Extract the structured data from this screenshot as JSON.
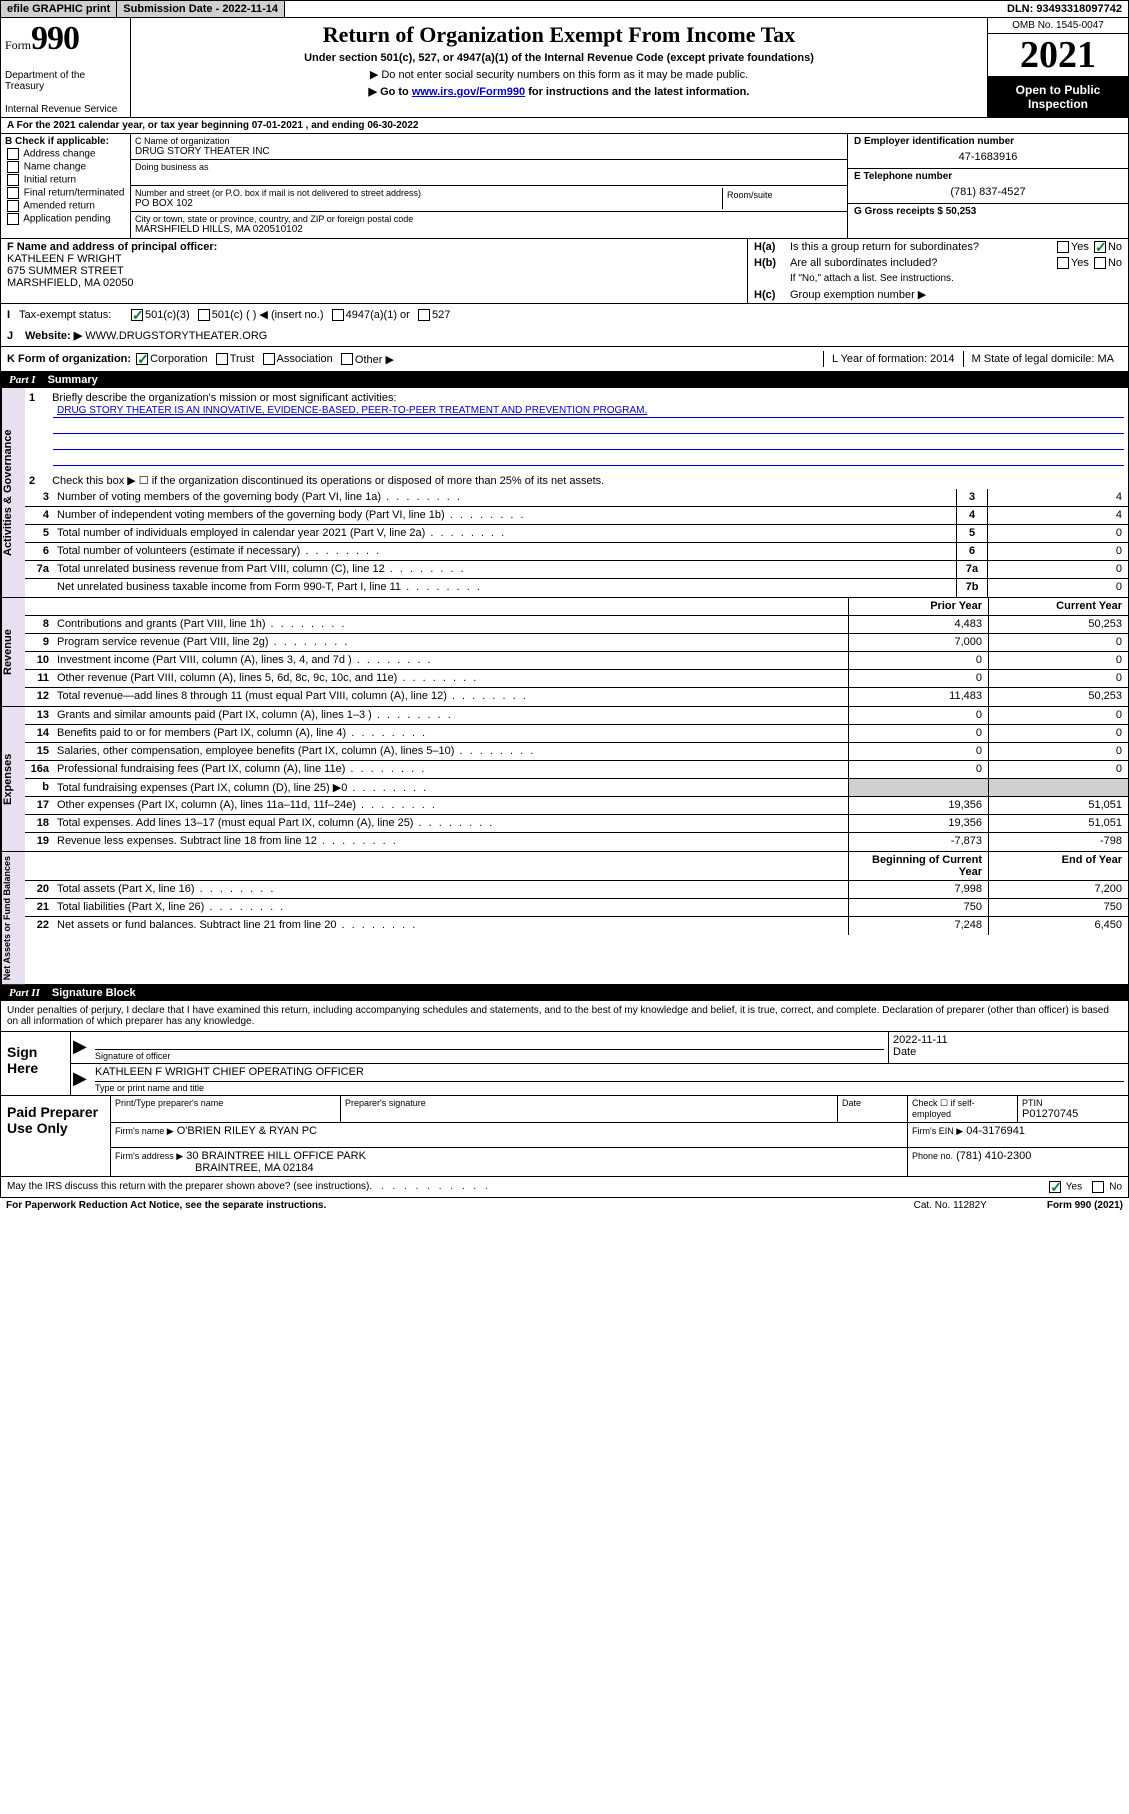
{
  "topbar": {
    "efile": "efile GRAPHIC print",
    "submission_label": "Submission Date - 2022-11-14",
    "dln": "DLN: 93493318097742"
  },
  "header": {
    "form_prefix": "Form",
    "form_num": "990",
    "dept": "Department of the Treasury",
    "irs": "Internal Revenue Service",
    "title": "Return of Organization Exempt From Income Tax",
    "sub1": "Under section 501(c), 527, or 4947(a)(1) of the Internal Revenue Code (except private foundations)",
    "sub2": "Do not enter social security numbers on this form as it may be made public.",
    "sub3_pre": "Go to ",
    "sub3_link": "www.irs.gov/Form990",
    "sub3_post": " for instructions and the latest information.",
    "omb": "OMB No. 1545-0047",
    "year": "2021",
    "open": "Open to Public Inspection"
  },
  "row_a": "A For the 2021 calendar year, or tax year beginning 07-01-2021   , and ending 06-30-2022",
  "col_b": {
    "hdr": "B Check if applicable:",
    "items": [
      "Address change",
      "Name change",
      "Initial return",
      "Final return/terminated",
      "Amended return",
      "Application pending"
    ]
  },
  "col_c": {
    "name_lbl": "C Name of organization",
    "name": "DRUG STORY THEATER INC",
    "dba_lbl": "Doing business as",
    "dba": "",
    "addr_lbl": "Number and street (or P.O. box if mail is not delivered to street address)",
    "addr": "PO BOX 102",
    "room_lbl": "Room/suite",
    "city_lbl": "City or town, state or province, country, and ZIP or foreign postal code",
    "city": "MARSHFIELD HILLS, MA  020510102"
  },
  "col_d": {
    "ein_lbl": "D Employer identification number",
    "ein": "47-1683916",
    "tel_lbl": "E Telephone number",
    "tel": "(781) 837-4527",
    "gross_lbl": "G Gross receipts $ 50,253"
  },
  "row_f": {
    "lbl": "F Name and address of principal officer:",
    "name": "KATHLEEN F WRIGHT",
    "addr1": "675 SUMMER STREET",
    "addr2": "MARSHFIELD, MA  02050"
  },
  "row_h": {
    "a_lbl": "Is this a group return for subordinates?",
    "b_lbl": "Are all subordinates included?",
    "b_note": "If \"No,\" attach a list. See instructions.",
    "c_lbl": "Group exemption number ▶"
  },
  "row_i": {
    "lbl": "Tax-exempt status:",
    "opts": [
      "501(c)(3)",
      "501(c) (  ) ◀ (insert no.)",
      "4947(a)(1) or",
      "527"
    ]
  },
  "row_j": {
    "lbl": "Website: ▶",
    "val": "WWW.DRUGSTORYTHEATER.ORG"
  },
  "row_k": {
    "lbl": "K Form of organization:",
    "opts": [
      "Corporation",
      "Trust",
      "Association",
      "Other ▶"
    ],
    "l_lbl": "L Year of formation: 2014",
    "m_lbl": "M State of legal domicile: MA"
  },
  "part1": {
    "hdr": "Summary",
    "l1_lbl": "Briefly describe the organization's mission or most significant activities:",
    "l1_val": "DRUG STORY THEATER IS AN INNOVATIVE, EVIDENCE-BASED, PEER-TO-PEER TREATMENT AND PREVENTION PROGRAM.",
    "l2": "Check this box ▶ ☐  if the organization discontinued its operations or disposed of more than 25% of its net assets.",
    "lines_ag": [
      {
        "n": "3",
        "t": "Number of voting members of the governing body (Part VI, line 1a)",
        "k": "3",
        "v": "4"
      },
      {
        "n": "4",
        "t": "Number of independent voting members of the governing body (Part VI, line 1b)",
        "k": "4",
        "v": "4"
      },
      {
        "n": "5",
        "t": "Total number of individuals employed in calendar year 2021 (Part V, line 2a)",
        "k": "5",
        "v": "0"
      },
      {
        "n": "6",
        "t": "Total number of volunteers (estimate if necessary)",
        "k": "6",
        "v": "0"
      },
      {
        "n": "7a",
        "t": "Total unrelated business revenue from Part VIII, column (C), line 12",
        "k": "7a",
        "v": "0"
      },
      {
        "n": "",
        "t": "Net unrelated business taxable income from Form 990-T, Part I, line 11",
        "k": "7b",
        "v": "0"
      }
    ],
    "col_prior": "Prior Year",
    "col_curr": "Current Year",
    "rev": [
      {
        "n": "8",
        "t": "Contributions and grants (Part VIII, line 1h)",
        "p": "4,483",
        "c": "50,253"
      },
      {
        "n": "9",
        "t": "Program service revenue (Part VIII, line 2g)",
        "p": "7,000",
        "c": "0"
      },
      {
        "n": "10",
        "t": "Investment income (Part VIII, column (A), lines 3, 4, and 7d )",
        "p": "0",
        "c": "0"
      },
      {
        "n": "11",
        "t": "Other revenue (Part VIII, column (A), lines 5, 6d, 8c, 9c, 10c, and 11e)",
        "p": "0",
        "c": "0"
      },
      {
        "n": "12",
        "t": "Total revenue—add lines 8 through 11 (must equal Part VIII, column (A), line 12)",
        "p": "11,483",
        "c": "50,253"
      }
    ],
    "exp": [
      {
        "n": "13",
        "t": "Grants and similar amounts paid (Part IX, column (A), lines 1–3 )",
        "p": "0",
        "c": "0"
      },
      {
        "n": "14",
        "t": "Benefits paid to or for members (Part IX, column (A), line 4)",
        "p": "0",
        "c": "0"
      },
      {
        "n": "15",
        "t": "Salaries, other compensation, employee benefits (Part IX, column (A), lines 5–10)",
        "p": "0",
        "c": "0"
      },
      {
        "n": "16a",
        "t": "Professional fundraising fees (Part IX, column (A), line 11e)",
        "p": "0",
        "c": "0"
      },
      {
        "n": "b",
        "t": "Total fundraising expenses (Part IX, column (D), line 25) ▶0",
        "p": "",
        "c": "",
        "shade": true
      },
      {
        "n": "17",
        "t": "Other expenses (Part IX, column (A), lines 11a–11d, 11f–24e)",
        "p": "19,356",
        "c": "51,051"
      },
      {
        "n": "18",
        "t": "Total expenses. Add lines 13–17 (must equal Part IX, column (A), line 25)",
        "p": "19,356",
        "c": "51,051"
      },
      {
        "n": "19",
        "t": "Revenue less expenses. Subtract line 18 from line 12",
        "p": "-7,873",
        "c": "-798"
      }
    ],
    "col_beg": "Beginning of Current Year",
    "col_end": "End of Year",
    "net": [
      {
        "n": "20",
        "t": "Total assets (Part X, line 16)",
        "p": "7,998",
        "c": "7,200"
      },
      {
        "n": "21",
        "t": "Total liabilities (Part X, line 26)",
        "p": "750",
        "c": "750"
      },
      {
        "n": "22",
        "t": "Net assets or fund balances. Subtract line 21 from line 20",
        "p": "7,248",
        "c": "6,450"
      }
    ]
  },
  "part2": {
    "hdr": "Signature Block",
    "perjury": "Under penalties of perjury, I declare that I have examined this return, including accompanying schedules and statements, and to the best of my knowledge and belief, it is true, correct, and complete. Declaration of preparer (other than officer) is based on all information of which preparer has any knowledge.",
    "sign_here": "Sign Here",
    "sig_officer_lbl": "Signature of officer",
    "sig_date": "2022-11-11",
    "sig_date_lbl": "Date",
    "officer_name": "KATHLEEN F WRIGHT CHIEF OPERATING OFFICER",
    "officer_name_lbl": "Type or print name and title",
    "paid": "Paid Preparer Use Only",
    "prep_name_lbl": "Print/Type preparer's name",
    "prep_sig_lbl": "Preparer's signature",
    "prep_date_lbl": "Date",
    "prep_check_lbl": "Check ☐ if self-employed",
    "ptin_lbl": "PTIN",
    "ptin": "P01270745",
    "firm_name_lbl": "Firm's name   ▶",
    "firm_name": "O'BRIEN RILEY & RYAN PC",
    "firm_ein_lbl": "Firm's EIN ▶",
    "firm_ein": "04-3176941",
    "firm_addr_lbl": "Firm's address ▶",
    "firm_addr1": "30 BRAINTREE HILL OFFICE PARK",
    "firm_addr2": "BRAINTREE, MA  02184",
    "firm_phone_lbl": "Phone no.",
    "firm_phone": "(781) 410-2300",
    "discuss": "May the IRS discuss this return with the preparer shown above? (see instructions)"
  },
  "footer": {
    "left": "For Paperwork Reduction Act Notice, see the separate instructions.",
    "mid": "Cat. No. 11282Y",
    "right": "Form 990 (2021)"
  }
}
